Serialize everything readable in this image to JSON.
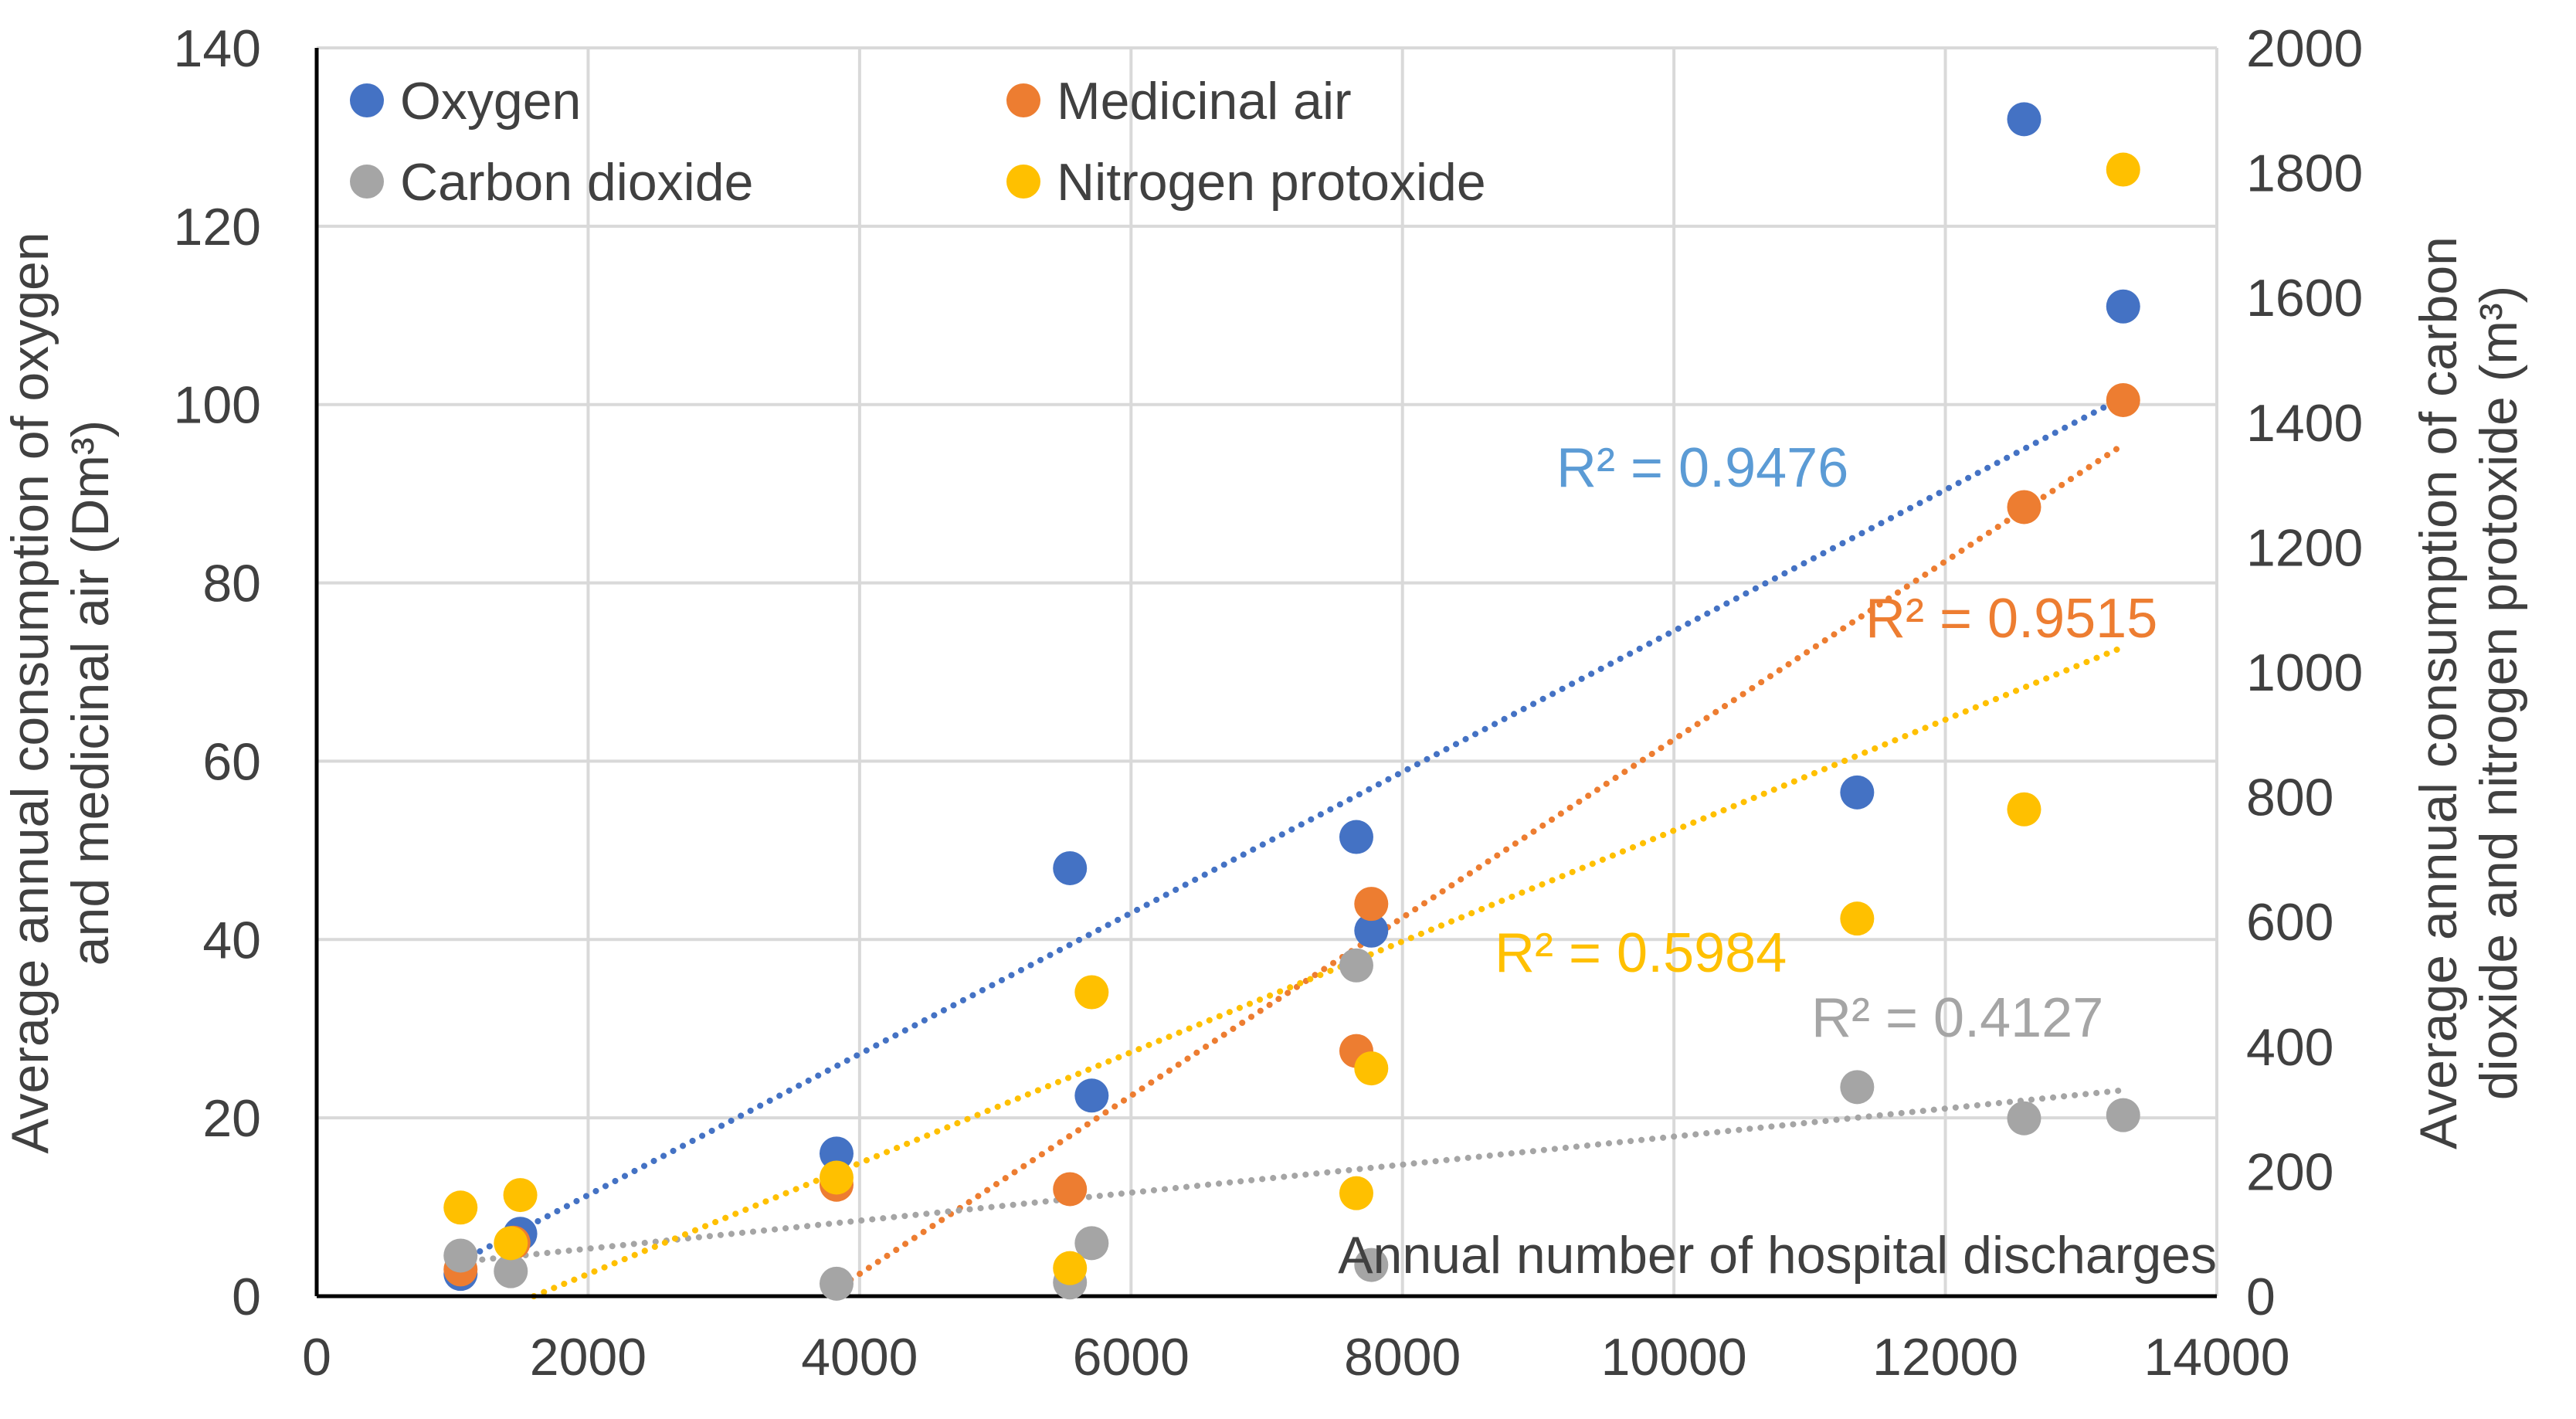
{
  "chart_data": {
    "type": "scatter",
    "title": "",
    "xlabel": "Annual number of hospital discharges",
    "ylabel_left": "Average annual consumption of oxygen and medicinal air (Dm³)",
    "ylabel_left_line1": "Average annual consumption of oxygen",
    "ylabel_left_line2": "and medicinal air (Dm³)",
    "ylabel_right": "Average annual consumption of carbon dioxide and nitrogen protoxide (m³)",
    "ylabel_right_line1": "Average annual consumption of carbon",
    "ylabel_right_line2": "dioxide and nitrogen protoxide (m³)",
    "xlim": [
      0,
      14000
    ],
    "ylim_left": [
      0,
      140
    ],
    "ylim_right": [
      0,
      2000
    ],
    "x_ticks": [
      "0",
      "2000",
      "4000",
      "6000",
      "8000",
      "10000",
      "12000",
      "14000"
    ],
    "y_left_ticks": [
      "0",
      "20",
      "40",
      "60",
      "80",
      "100",
      "120",
      "140"
    ],
    "y_right_ticks": [
      "0",
      "200",
      "400",
      "600",
      "800",
      "1000",
      "1200",
      "1400",
      "1600",
      "1800",
      "2000"
    ],
    "grid": true,
    "legend_position": "top-left",
    "series": [
      {
        "name": "Oxygen",
        "axis": "left",
        "color": "#4472C4",
        "r2": "R² = 0.9476",
        "x": [
          1060,
          1500,
          3830,
          5550,
          5710,
          7660,
          7770,
          11350,
          12580,
          13310
        ],
        "y": [
          2.5,
          7,
          16,
          48,
          22.5,
          51.5,
          41,
          56.5,
          132,
          111
        ],
        "trend": [
          [
            1060,
            3.9
          ],
          [
            13310,
            100.8
          ]
        ]
      },
      {
        "name": "Medicinal air",
        "axis": "left",
        "color": "#ED7D31",
        "r2": "R² = 0.9515",
        "x": [
          1060,
          1450,
          3830,
          5550,
          7660,
          7770,
          12580,
          13310
        ],
        "y": [
          3,
          6,
          12.5,
          12,
          27.5,
          44,
          88.5,
          100.5
        ],
        "trend": [
          [
            3800,
            0.5
          ],
          [
            13310,
            95.5
          ]
        ]
      },
      {
        "name": "Carbon dioxide",
        "axis": "right",
        "color": "#A5A5A5",
        "r2": "R² = 0.4127",
        "x": [
          1060,
          1430,
          3830,
          5550,
          5710,
          7660,
          7770,
          11350,
          12580,
          13310
        ],
        "y": [
          65,
          40,
          20,
          22,
          85,
          530,
          50,
          335,
          285,
          290
        ],
        "trend": [
          [
            1060,
            55
          ],
          [
            13310,
            330
          ]
        ]
      },
      {
        "name": "Nitrogen protoxide",
        "axis": "right",
        "color": "#FFC000",
        "r2": "R² = 0.5984",
        "x": [
          1060,
          1430,
          1500,
          3830,
          5550,
          5710,
          7660,
          7770,
          11350,
          12580,
          13310
        ],
        "y": [
          142,
          85,
          162,
          190,
          45,
          487,
          165,
          365,
          605,
          780,
          1805
        ],
        "trend": [
          [
            1600,
            0
          ],
          [
            13310,
            1040
          ]
        ]
      }
    ]
  }
}
